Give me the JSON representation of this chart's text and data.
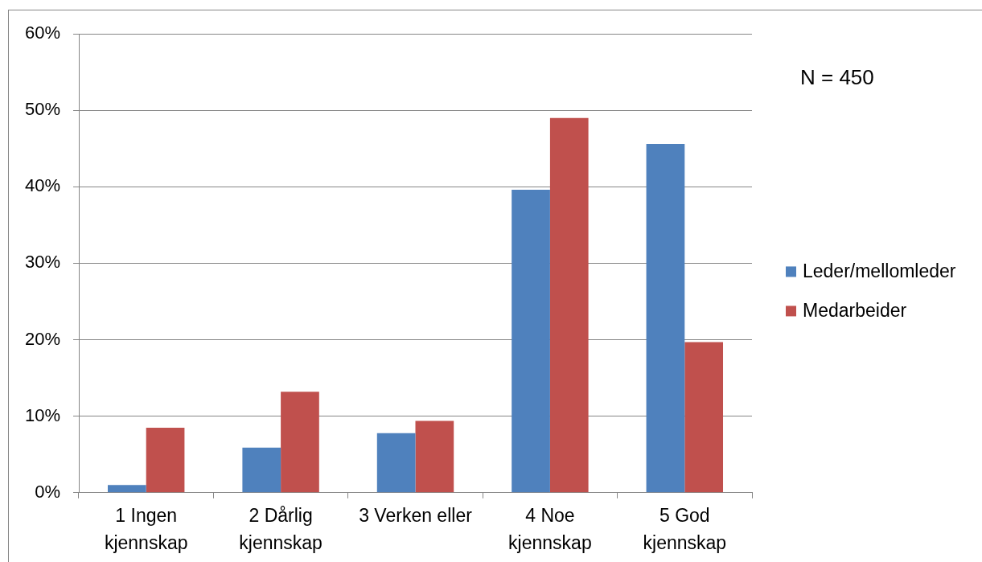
{
  "chart_data": {
    "type": "bar",
    "categories": [
      "1 Ingen kjennskap",
      "2 Dårlig kjennskap",
      "3 Verken eller",
      "4 Noe kjennskap",
      "5 God kjennskap"
    ],
    "series": [
      {
        "name": "Leder/mellomleder",
        "color": "#4f81bd",
        "values": [
          1.0,
          5.9,
          7.8,
          39.6,
          45.6
        ]
      },
      {
        "name": "Medarbeider",
        "color": "#c0504d",
        "values": [
          8.5,
          13.2,
          9.4,
          49.0,
          19.7
        ]
      }
    ],
    "ylim": [
      0,
      60
    ],
    "yticks": [
      {
        "value": 0,
        "label": "0%"
      },
      {
        "value": 10,
        "label": "10%"
      },
      {
        "value": 20,
        "label": "20%"
      },
      {
        "value": 30,
        "label": "30%"
      },
      {
        "value": 40,
        "label": "40%"
      },
      {
        "value": 50,
        "label": "50%"
      },
      {
        "value": 60,
        "label": "60%"
      }
    ],
    "grid": "y",
    "legend": "right",
    "annotations": [
      "N = 450"
    ]
  }
}
